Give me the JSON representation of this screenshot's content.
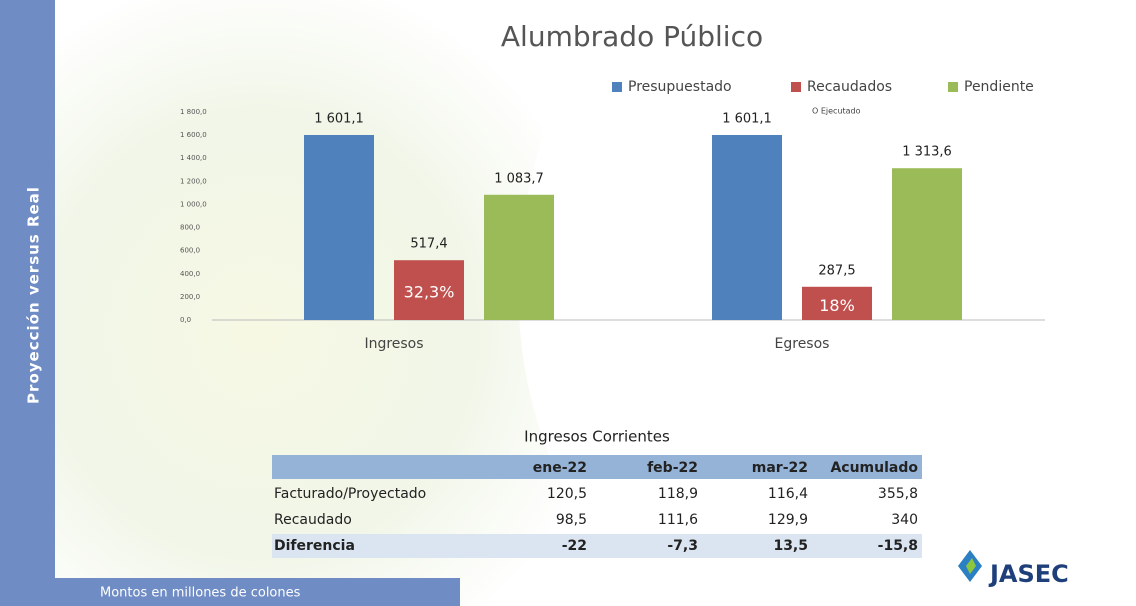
{
  "sidebar": "Proyección versus Real",
  "footer": "Montos en millones de colones",
  "logo": "JASEC",
  "chart_data": {
    "type": "bar",
    "title": "Alumbrado Público",
    "categories": [
      "Ingresos",
      "Egresos"
    ],
    "series": [
      {
        "name": "Presupuestado",
        "color": "#4f81bd",
        "values": [
          1601.1,
          1601.1
        ],
        "value_labels": [
          "1 601,1",
          "1 601,1"
        ]
      },
      {
        "name": "Recaudados",
        "note": "O Ejecutado",
        "color": "#c0504d",
        "values": [
          517.4,
          287.5
        ],
        "value_labels": [
          "517,4",
          "287,5"
        ],
        "percent_labels": [
          "32,3%",
          "18%"
        ]
      },
      {
        "name": "Pendiente",
        "color": "#9bbb59",
        "values": [
          1083.7,
          1313.6
        ],
        "value_labels": [
          "1 083,7",
          "1 313,6"
        ]
      }
    ],
    "ylim": [
      0,
      1800
    ],
    "yticks": [
      {
        "value": 0,
        "label": "0,0"
      },
      {
        "value": 200,
        "label": "200,0"
      },
      {
        "value": 400,
        "label": "400,0"
      },
      {
        "value": 600,
        "label": "600,0"
      },
      {
        "value": 800,
        "label": "800,0"
      },
      {
        "value": 1000,
        "label": "1 000,0"
      },
      {
        "value": 1200,
        "label": "1 200,0"
      },
      {
        "value": 1400,
        "label": "1 400,0"
      },
      {
        "value": 1600,
        "label": "1 600,0"
      },
      {
        "value": 1800,
        "label": "1 800,0"
      }
    ],
    "legend": "top-right"
  },
  "table": {
    "title": "Ingresos Corrientes",
    "columns": [
      "ene-22",
      "feb-22",
      "mar-22",
      "Acumulado"
    ],
    "rows": [
      {
        "label": "Facturado/Proyectado",
        "cells": [
          "120,5",
          "118,9",
          "116,4",
          "355,8"
        ]
      },
      {
        "label": "Recaudado",
        "cells": [
          "98,5",
          "111,6",
          "129,9",
          "340"
        ]
      },
      {
        "label": "Diferencia",
        "cells": [
          "-22",
          "-7,3",
          "13,5",
          "-15,8"
        ]
      }
    ]
  }
}
